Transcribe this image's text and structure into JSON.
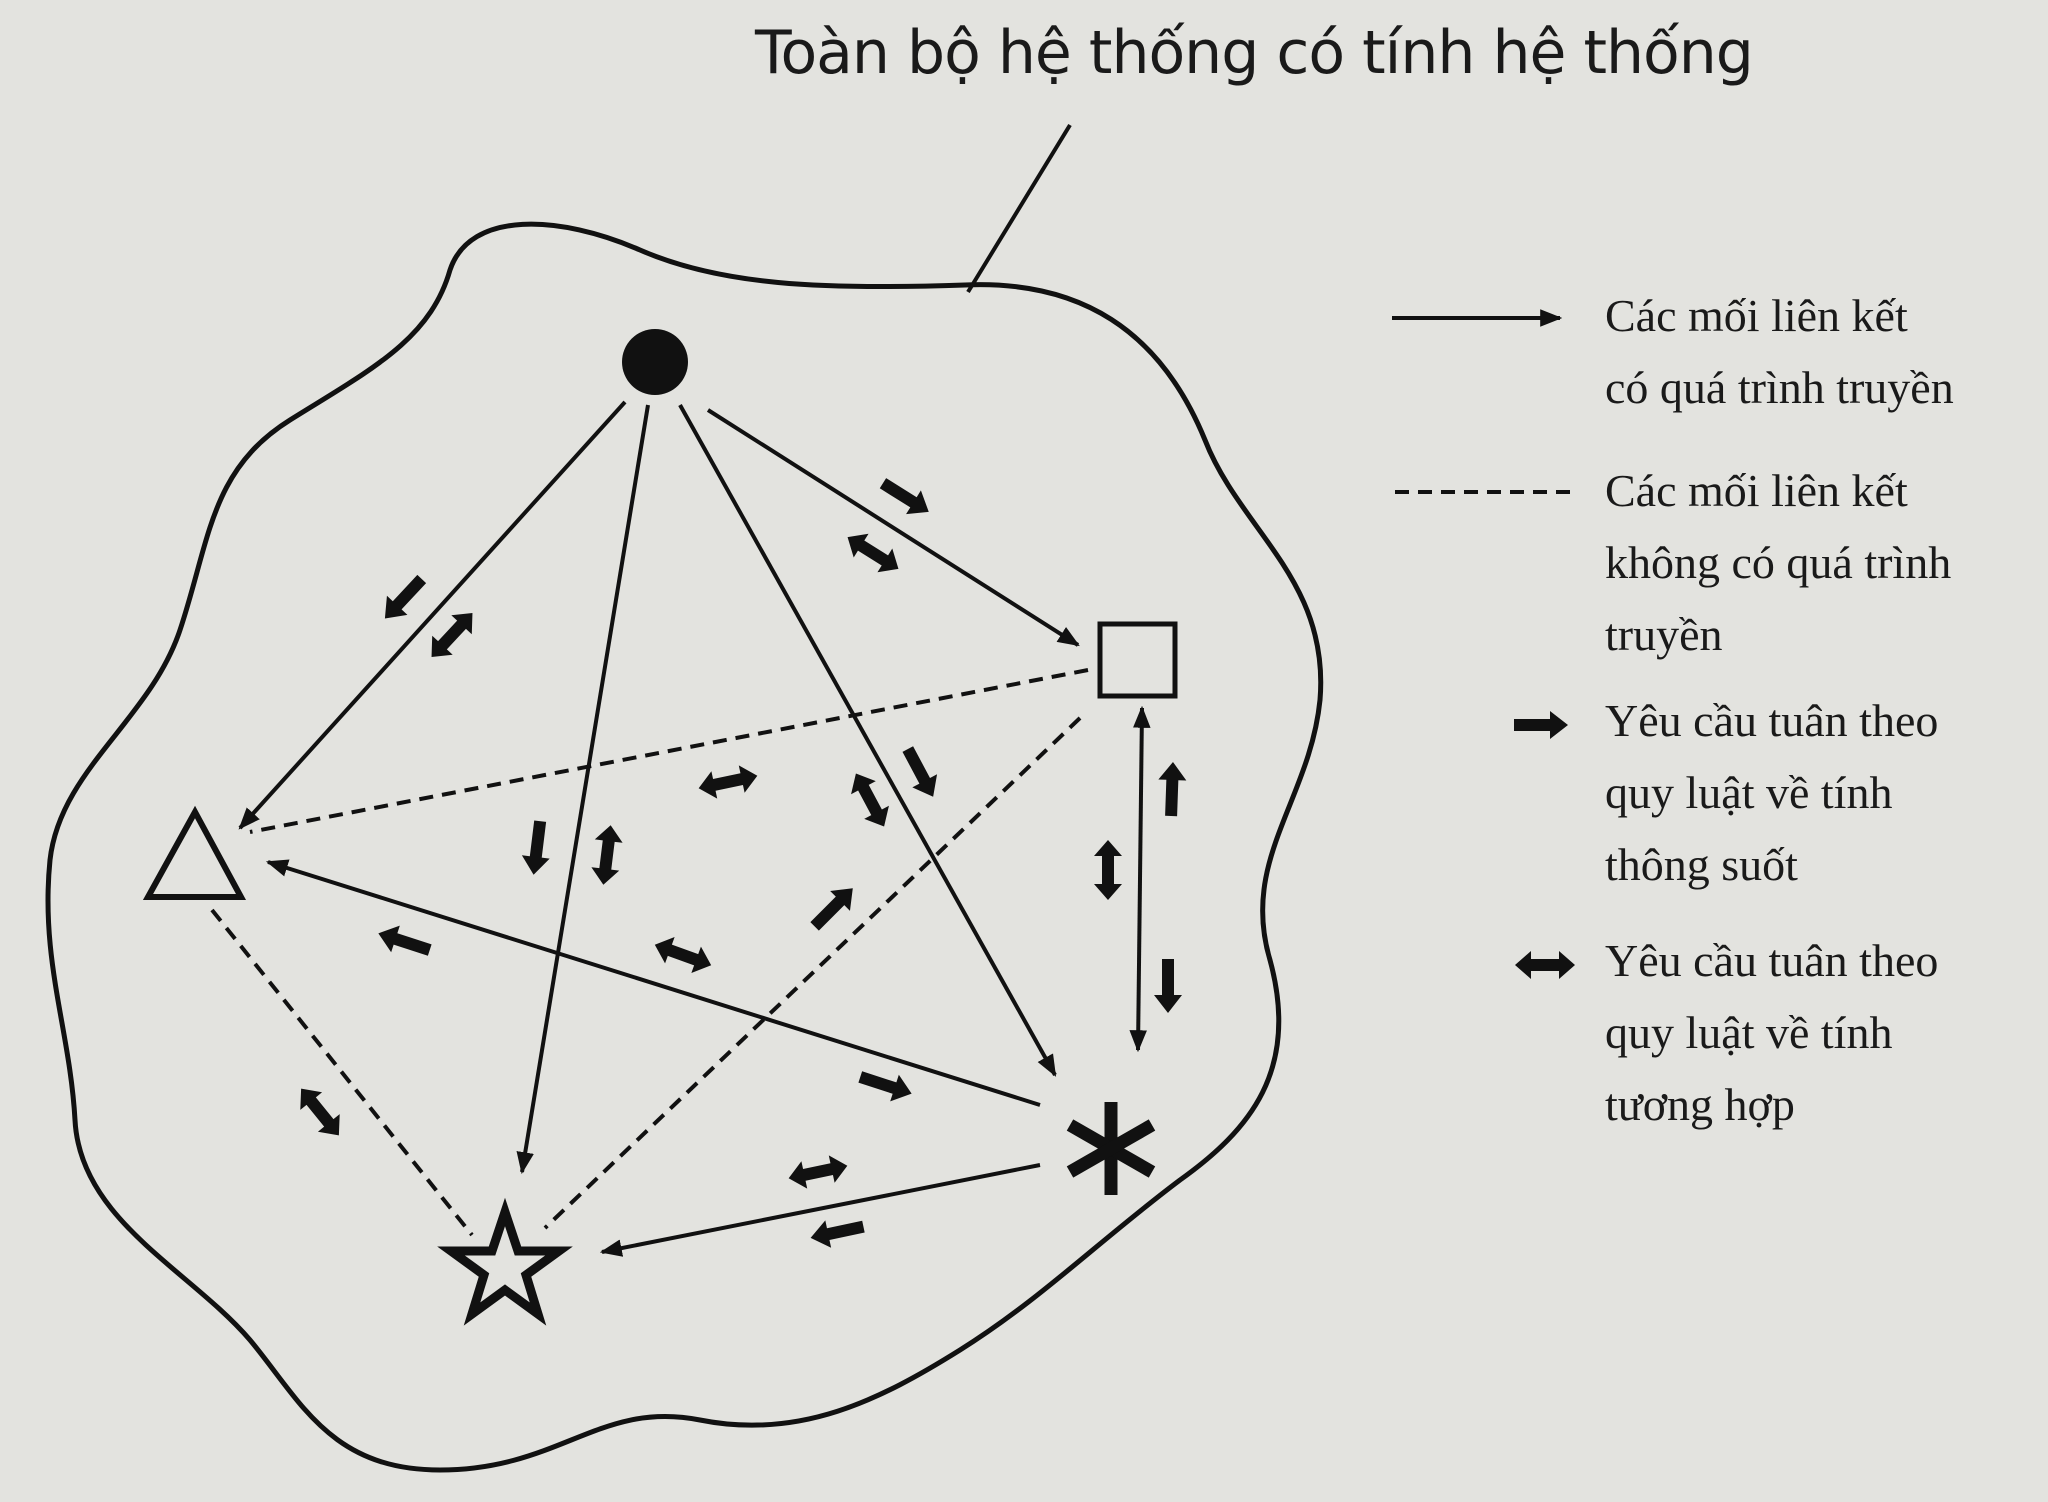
{
  "title": "Toàn bộ hệ thống có tính hệ thống",
  "legend": [
    {
      "symbol": "arrow-solid",
      "lines": [
        "Các mối liên kết",
        "có quá trình truyền"
      ]
    },
    {
      "symbol": "dashed-line",
      "lines": [
        "Các mối liên kết",
        "không có quá trình",
        "truyền"
      ]
    },
    {
      "symbol": "bold-single-arrow",
      "lines": [
        "Yêu cầu tuân theo",
        "quy luật về tính",
        "thông suốt"
      ]
    },
    {
      "symbol": "bold-double-arrow",
      "lines": [
        "Yêu cầu tuân theo",
        "quy luật về tính",
        "tương hợp"
      ]
    }
  ],
  "nodes": [
    {
      "id": "circle",
      "shape": "filled-circle"
    },
    {
      "id": "square",
      "shape": "square"
    },
    {
      "id": "triangle",
      "shape": "triangle"
    },
    {
      "id": "asterisk",
      "shape": "asterisk"
    },
    {
      "id": "star",
      "shape": "star"
    }
  ],
  "links": [
    {
      "from": "circle",
      "to": "triangle",
      "type": "solid"
    },
    {
      "from": "circle",
      "to": "star",
      "type": "solid"
    },
    {
      "from": "circle",
      "to": "asterisk",
      "type": "solid"
    },
    {
      "from": "circle",
      "to": "square",
      "type": "solid"
    },
    {
      "from": "square",
      "to": "asterisk",
      "type": "solid-double"
    },
    {
      "from": "asterisk",
      "to": "triangle",
      "type": "solid"
    },
    {
      "from": "asterisk",
      "to": "star",
      "type": "solid"
    },
    {
      "from": "square",
      "to": "triangle",
      "type": "dashed"
    },
    {
      "from": "square",
      "to": "star",
      "type": "dashed"
    },
    {
      "from": "triangle",
      "to": "star",
      "type": "dashed"
    }
  ]
}
